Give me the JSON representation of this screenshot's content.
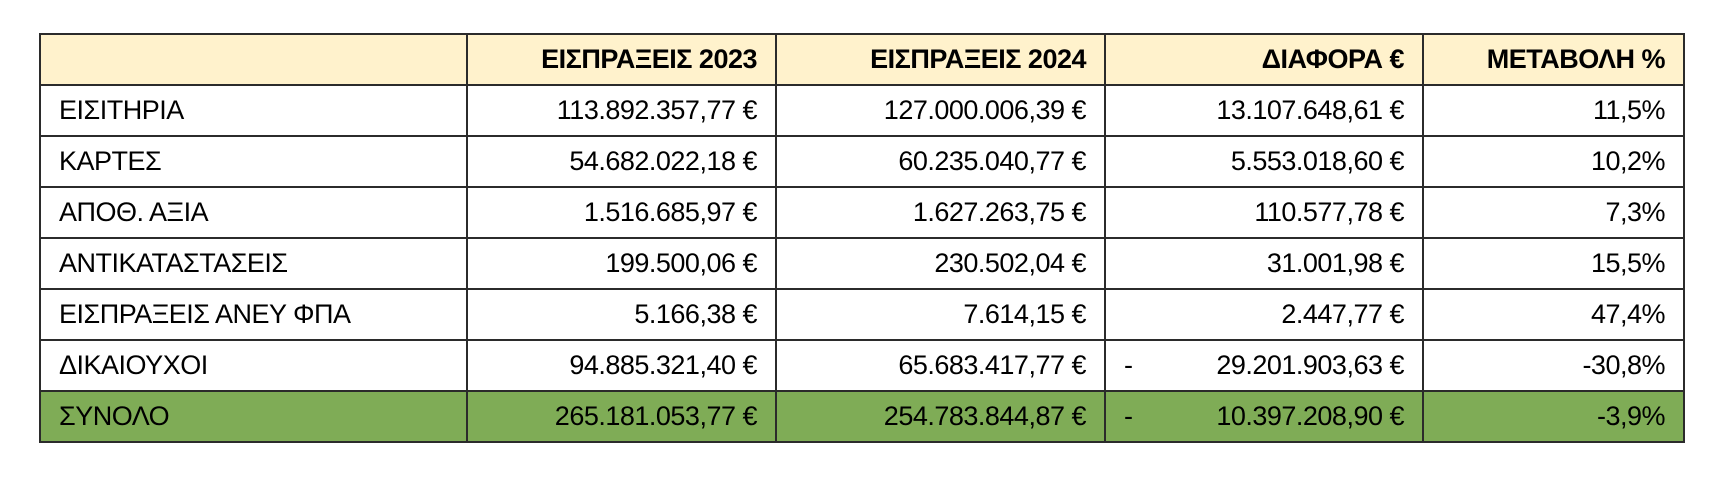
{
  "colors": {
    "header_bg": "#FFF2CC",
    "total_bg": "#7FAC56"
  },
  "headers": [
    "",
    "ΕΙΣΠΡΑΞΕΙΣ 2023",
    "ΕΙΣΠΡΑΞΕΙΣ 2024",
    "ΔΙΑΦΟΡΑ €",
    "ΜΕΤΑΒΟΛΗ %"
  ],
  "rows": [
    {
      "label": "ΕΙΣΙΤΗΡΙΑ",
      "y2023": "113.892.357,77 €",
      "y2024": "127.000.006,39 €",
      "diff_sign": "",
      "diff": "13.107.648,61 €",
      "change": "11,5%"
    },
    {
      "label": "ΚΑΡΤΕΣ",
      "y2023": "54.682.022,18 €",
      "y2024": "60.235.040,77 €",
      "diff_sign": "",
      "diff": "5.553.018,60 €",
      "change": "10,2%"
    },
    {
      "label": "ΑΠΟΘ. ΑΞΙΑ",
      "y2023": "1.516.685,97 €",
      "y2024": "1.627.263,75 €",
      "diff_sign": "",
      "diff": "110.577,78 €",
      "change": "7,3%"
    },
    {
      "label": "ΑΝΤΙΚΑΤΑΣΤΑΣΕΙΣ",
      "y2023": "199.500,06 €",
      "y2024": "230.502,04 €",
      "diff_sign": "",
      "diff": "31.001,98 €",
      "change": "15,5%"
    },
    {
      "label": "ΕΙΣΠΡΑΞΕΙΣ ΑΝΕΥ ΦΠΑ",
      "y2023": "5.166,38 €",
      "y2024": "7.614,15 €",
      "diff_sign": "",
      "diff": "2.447,77 €",
      "change": "47,4%"
    },
    {
      "label": "ΔΙΚΑΙΟΥΧΟΙ",
      "y2023": "94.885.321,40 €",
      "y2024": "65.683.417,77 €",
      "diff_sign": "-",
      "diff": "29.201.903,63 €",
      "change": "-30,8%"
    }
  ],
  "total": {
    "label": "ΣΥΝΟΛΟ",
    "y2023": "265.181.053,77 €",
    "y2024": "254.783.844,87 €",
    "diff_sign": "-",
    "diff": "10.397.208,90 €",
    "change": "-3,9%"
  }
}
